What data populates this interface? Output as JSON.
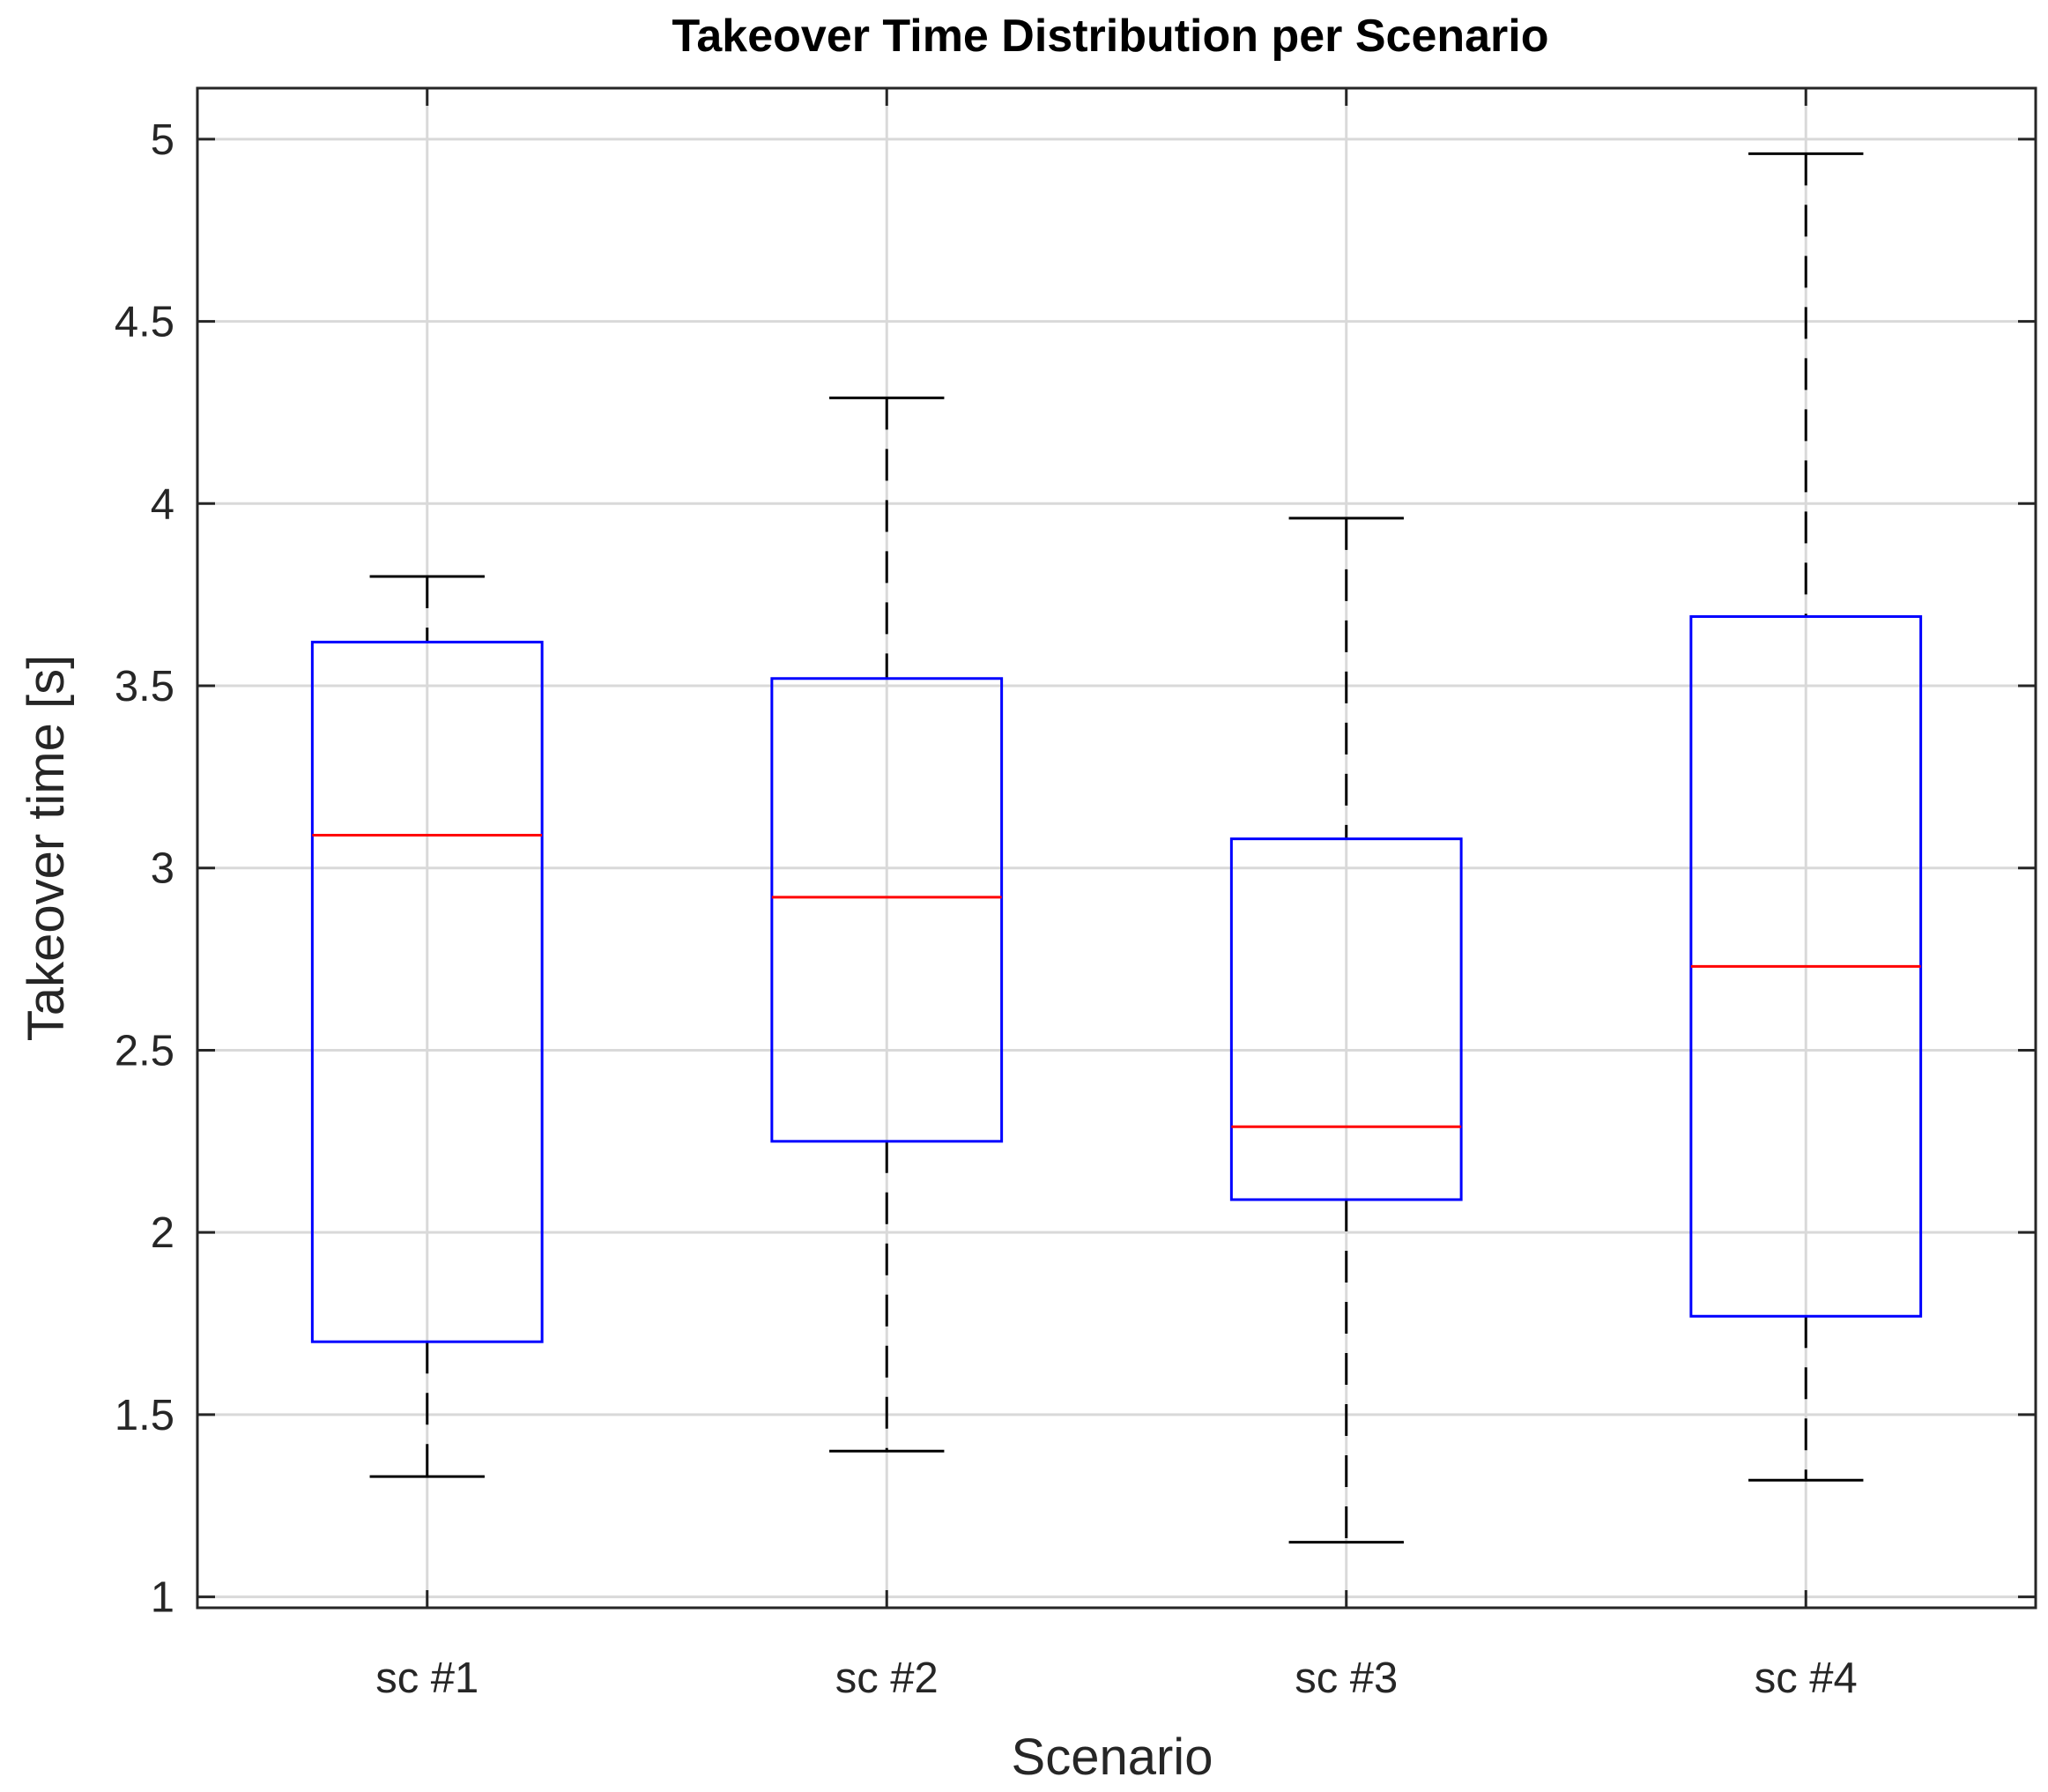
{
  "chart_data": {
    "type": "boxplot",
    "title": "Takeover Time Distribution per Scenario",
    "xlabel": "Scenario",
    "ylabel": "Takeover time [s]",
    "categories": [
      "sc #1",
      "sc #2",
      "sc #3",
      "sc #4"
    ],
    "ylim": [
      0.97,
      5.14
    ],
    "yticks": [
      1,
      1.5,
      2,
      2.5,
      3,
      3.5,
      4,
      4.5,
      5
    ],
    "ytick_labels": [
      "1",
      "1.5",
      "2",
      "2.5",
      "3",
      "3.5",
      "4",
      "4.5",
      "5"
    ],
    "grid": true,
    "boxes": [
      {
        "label": "sc #1",
        "whisker_low": 1.33,
        "q1": 1.7,
        "median": 3.09,
        "q3": 3.62,
        "whisker_high": 3.8
      },
      {
        "label": "sc #2",
        "whisker_low": 1.4,
        "q1": 2.25,
        "median": 2.92,
        "q3": 3.52,
        "whisker_high": 4.29
      },
      {
        "label": "sc #3",
        "whisker_low": 1.15,
        "q1": 2.09,
        "median": 2.29,
        "q3": 3.08,
        "whisker_high": 3.96
      },
      {
        "label": "sc #4",
        "whisker_low": 1.32,
        "q1": 1.77,
        "median": 2.73,
        "q3": 3.69,
        "whisker_high": 4.96
      }
    ],
    "colors": {
      "box": "#0000ff",
      "median": "#ff0000",
      "whisker": "#000000",
      "grid": "#d9d9d9",
      "axis": "#262626"
    }
  }
}
